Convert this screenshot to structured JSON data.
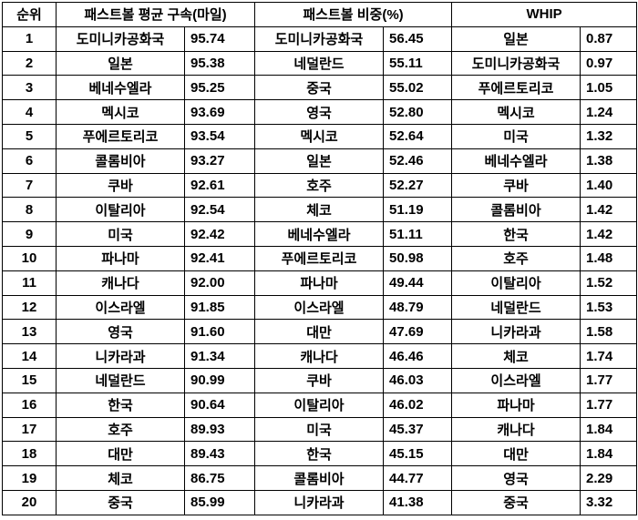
{
  "headers": {
    "rank": "순위",
    "fastball_velocity": "패스트볼 평균 구속(마일)",
    "fastball_pct": "패스트볼 비중(%)",
    "whip": "WHIP"
  },
  "rows": [
    {
      "rank": "1",
      "velo_country": "도미니카공화국",
      "velo": "95.74",
      "pct_country": "도미니카공화국",
      "pct": "56.45",
      "whip_country": "일본",
      "whip": "0.87"
    },
    {
      "rank": "2",
      "velo_country": "일본",
      "velo": "95.38",
      "pct_country": "네덜란드",
      "pct": "55.11",
      "whip_country": "도미니카공화국",
      "whip": "0.97"
    },
    {
      "rank": "3",
      "velo_country": "베네수엘라",
      "velo": "95.25",
      "pct_country": "중국",
      "pct": "55.02",
      "whip_country": "푸에르토리코",
      "whip": "1.05"
    },
    {
      "rank": "4",
      "velo_country": "멕시코",
      "velo": "93.69",
      "pct_country": "영국",
      "pct": "52.80",
      "whip_country": "멕시코",
      "whip": "1.24"
    },
    {
      "rank": "5",
      "velo_country": "푸에르토리코",
      "velo": "93.54",
      "pct_country": "멕시코",
      "pct": "52.64",
      "whip_country": "미국",
      "whip": "1.32"
    },
    {
      "rank": "6",
      "velo_country": "콜롬비아",
      "velo": "93.27",
      "pct_country": "일본",
      "pct": "52.46",
      "whip_country": "베네수엘라",
      "whip": "1.38"
    },
    {
      "rank": "7",
      "velo_country": "쿠바",
      "velo": "92.61",
      "pct_country": "호주",
      "pct": "52.27",
      "whip_country": "쿠바",
      "whip": "1.40"
    },
    {
      "rank": "8",
      "velo_country": "이탈리아",
      "velo": "92.54",
      "pct_country": "체코",
      "pct": "51.19",
      "whip_country": "콜롬비아",
      "whip": "1.42"
    },
    {
      "rank": "9",
      "velo_country": "미국",
      "velo": "92.42",
      "pct_country": "베네수엘라",
      "pct": "51.11",
      "whip_country": "한국",
      "whip": "1.42"
    },
    {
      "rank": "10",
      "velo_country": "파나마",
      "velo": "92.41",
      "pct_country": "푸에르토리코",
      "pct": "50.98",
      "whip_country": "호주",
      "whip": "1.48"
    },
    {
      "rank": "11",
      "velo_country": "캐나다",
      "velo": "92.00",
      "pct_country": "파나마",
      "pct": "49.44",
      "whip_country": "이탈리아",
      "whip": "1.52"
    },
    {
      "rank": "12",
      "velo_country": "이스라엘",
      "velo": "91.85",
      "pct_country": "이스라엘",
      "pct": "48.79",
      "whip_country": "네덜란드",
      "whip": "1.53"
    },
    {
      "rank": "13",
      "velo_country": "영국",
      "velo": "91.60",
      "pct_country": "대만",
      "pct": "47.69",
      "whip_country": "니카라과",
      "whip": "1.58"
    },
    {
      "rank": "14",
      "velo_country": "니카라과",
      "velo": "91.34",
      "pct_country": "캐나다",
      "pct": "46.46",
      "whip_country": "체코",
      "whip": "1.74"
    },
    {
      "rank": "15",
      "velo_country": "네덜란드",
      "velo": "90.99",
      "pct_country": "쿠바",
      "pct": "46.03",
      "whip_country": "이스라엘",
      "whip": "1.77"
    },
    {
      "rank": "16",
      "velo_country": "한국",
      "velo": "90.64",
      "pct_country": "이탈리아",
      "pct": "46.02",
      "whip_country": "파나마",
      "whip": "1.77"
    },
    {
      "rank": "17",
      "velo_country": "호주",
      "velo": "89.93",
      "pct_country": "미국",
      "pct": "45.37",
      "whip_country": "캐나다",
      "whip": "1.84"
    },
    {
      "rank": "18",
      "velo_country": "대만",
      "velo": "89.43",
      "pct_country": "한국",
      "pct": "45.15",
      "whip_country": "대만",
      "whip": "1.84"
    },
    {
      "rank": "19",
      "velo_country": "체코",
      "velo": "86.75",
      "pct_country": "콜롬비아",
      "pct": "44.77",
      "whip_country": "영국",
      "whip": "2.29"
    },
    {
      "rank": "20",
      "velo_country": "중국",
      "velo": "85.99",
      "pct_country": "니카라과",
      "pct": "41.38",
      "whip_country": "중국",
      "whip": "3.32"
    }
  ]
}
